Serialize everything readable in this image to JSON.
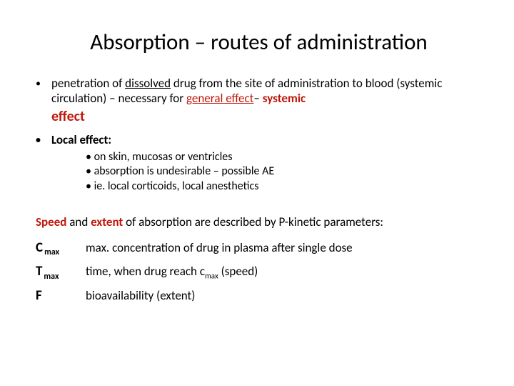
{
  "title": "Absorption – routes of administration",
  "bullet1": {
    "part1": "penetration of ",
    "dissolved": "dissolved",
    "part2": " drug from the  site of administration to blood (systemic circulation) – necessary for ",
    "general_effect": "general effect",
    "dash": "– ",
    "systemic": "systemic",
    "effect_word": "effect"
  },
  "bullet2": {
    "label": "Local effect:"
  },
  "sub_bullets": [
    "on skin, mucosas or ventricles",
    "absorption is undesirable – possible AE",
    "ie. local corticoids, local anesthetics"
  ],
  "speed_line": {
    "speed": "Speed",
    "mid": " and ",
    "extent": "extent",
    "rest": " of absorption are described by P-kinetic parameters:"
  },
  "params": [
    {
      "sym": "C",
      "sub": "max",
      "desc": "max. concentration of drug in plasma after single dose"
    },
    {
      "sym": "T",
      "sub": "max",
      "desc_pre": "time, when drug reach c",
      "desc_sub": "max",
      "desc_post": " (speed)"
    },
    {
      "sym": "F",
      "sub": "",
      "desc": "bioavailability (extent)"
    }
  ],
  "colors": {
    "text": "#000000",
    "accent": "#c0160a",
    "background": "#ffffff"
  }
}
